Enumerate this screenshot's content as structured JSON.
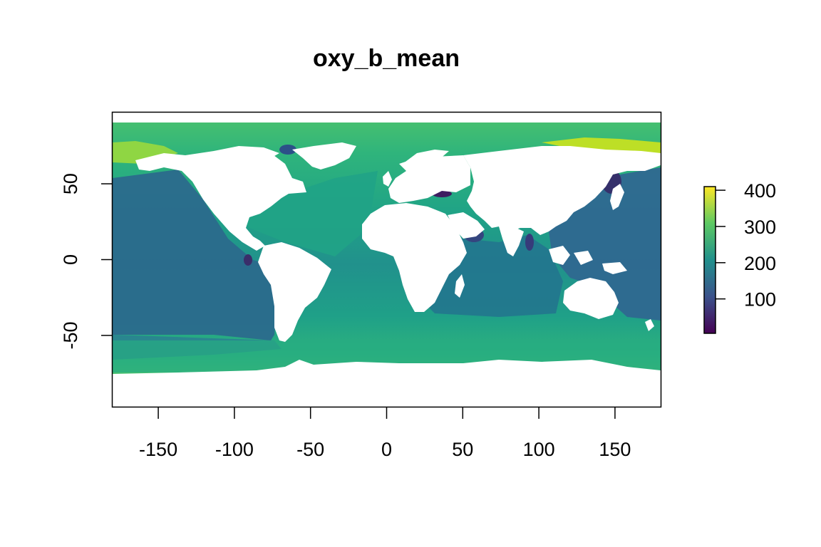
{
  "title": "oxy_b_mean",
  "chart_data": {
    "type": "heatmap",
    "title": "oxy_b_mean",
    "xlabel": "",
    "ylabel": "",
    "xlim": [
      -180,
      180
    ],
    "ylim": [
      -97,
      97
    ],
    "x_ticks": [
      "-150",
      "-100",
      "-50",
      "0",
      "50",
      "100",
      "150"
    ],
    "y_ticks": [
      "50",
      "0",
      "-50"
    ],
    "legend": {
      "placement": "right",
      "range": [
        5,
        410
      ],
      "ticks": [
        "400",
        "300",
        "200",
        "100"
      ],
      "colormap": [
        "#440154",
        "#3b528b",
        "#21908c",
        "#5dc963",
        "#fde725"
      ]
    },
    "colors": {
      "ocean_deep": "#2a6a8c",
      "ocean_mid": "#1f9a8a",
      "ocean_high": "#27ad81",
      "polar": "#47c16e",
      "arctic_high": "#bddf26",
      "low_oxygen": "#35306b",
      "land": "#ffffff"
    }
  }
}
